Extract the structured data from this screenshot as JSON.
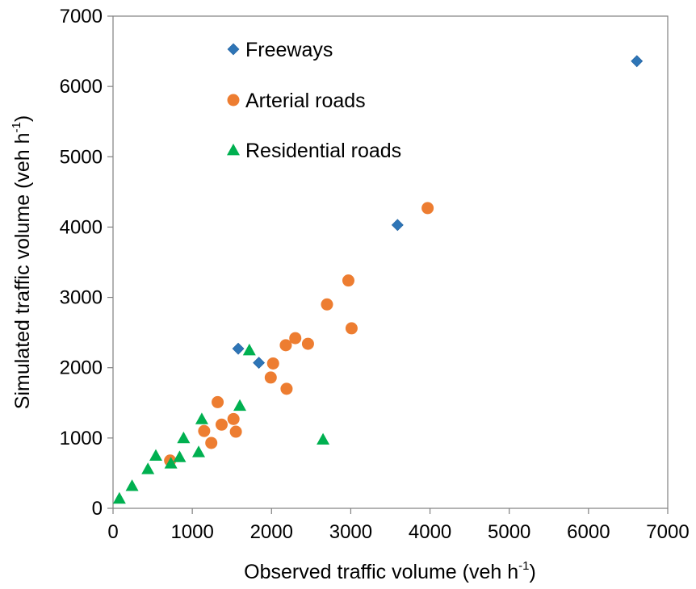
{
  "chart_data": {
    "type": "scatter",
    "xlabel": {
      "text": "Observed traffic volume  (veh h",
      "sup": "-1",
      "end": ")"
    },
    "ylabel": {
      "text": "Simulated  traffic volume  (veh h",
      "sup": "-1",
      "end": ")"
    },
    "xlim": [
      0,
      7000
    ],
    "ylim": [
      0,
      7000
    ],
    "x_ticks": [
      0,
      1000,
      2000,
      3000,
      4000,
      5000,
      6000,
      7000
    ],
    "y_ticks": [
      0,
      1000,
      2000,
      3000,
      4000,
      5000,
      6000,
      7000
    ],
    "grid": false,
    "legend_position": "top-left",
    "series": [
      {
        "name": "Freeways",
        "marker": "diamond",
        "color": "#2E75B6",
        "points": [
          [
            1580,
            2270
          ],
          [
            1840,
            2070
          ],
          [
            3590,
            4030
          ],
          [
            6610,
            6360
          ]
        ]
      },
      {
        "name": "Arterial roads",
        "marker": "circle",
        "color": "#ED7D31",
        "points": [
          [
            720,
            680
          ],
          [
            1150,
            1100
          ],
          [
            1240,
            930
          ],
          [
            1320,
            1510
          ],
          [
            1370,
            1190
          ],
          [
            1520,
            1270
          ],
          [
            1550,
            1090
          ],
          [
            1990,
            1860
          ],
          [
            2020,
            2060
          ],
          [
            2180,
            2320
          ],
          [
            2190,
            1700
          ],
          [
            2300,
            2420
          ],
          [
            2460,
            2340
          ],
          [
            2700,
            2900
          ],
          [
            2970,
            3240
          ],
          [
            3010,
            2560
          ],
          [
            3970,
            4270
          ]
        ]
      },
      {
        "name": "Residential roads",
        "marker": "triangle",
        "color": "#00B050",
        "points": [
          [
            80,
            140
          ],
          [
            240,
            320
          ],
          [
            440,
            560
          ],
          [
            540,
            750
          ],
          [
            730,
            640
          ],
          [
            840,
            730
          ],
          [
            890,
            1000
          ],
          [
            1080,
            800
          ],
          [
            1120,
            1270
          ],
          [
            1600,
            1460
          ],
          [
            1720,
            2250
          ],
          [
            2650,
            980
          ]
        ]
      }
    ]
  }
}
